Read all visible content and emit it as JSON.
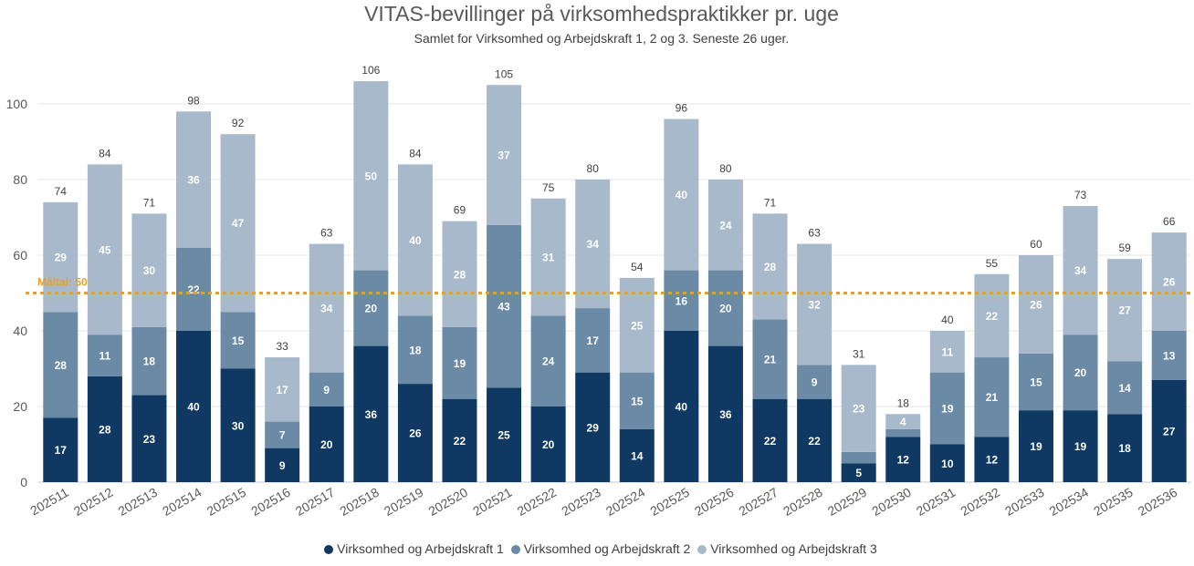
{
  "chart_data": {
    "type": "bar",
    "stacked": true,
    "title": "VITAS-bevillinger på virksomhedspraktikker pr. uge",
    "subtitle": "Samlet for Virksomhed og Arbejdskraft 1, 2 og 3. Seneste 26 uger.",
    "categories": [
      "202511",
      "202512",
      "202513",
      "202514",
      "202515",
      "202516",
      "202517",
      "202518",
      "202519",
      "202520",
      "202521",
      "202522",
      "202523",
      "202524",
      "202525",
      "202526",
      "202527",
      "202528",
      "202529",
      "202530",
      "202531",
      "202532",
      "202533",
      "202534",
      "202535",
      "202536"
    ],
    "series": [
      {
        "name": "Virksomhed og Arbejdskraft 1",
        "color": "#0f3862",
        "values": [
          17,
          28,
          23,
          40,
          30,
          9,
          20,
          36,
          26,
          22,
          25,
          20,
          29,
          14,
          40,
          36,
          22,
          22,
          5,
          12,
          10,
          12,
          19,
          19,
          18,
          27
        ],
        "labels": [
          "17",
          "28",
          "23",
          "40",
          "30",
          "9",
          "20",
          "36",
          "26",
          "22",
          "25",
          "20",
          "29",
          "14",
          "40",
          "36",
          "22",
          "22",
          "5",
          "12",
          "10",
          "12",
          "19",
          "19",
          "18",
          "27"
        ]
      },
      {
        "name": "Virksomhed og Arbejdskraft 2",
        "color": "#6b8aa6",
        "values": [
          28,
          11,
          18,
          22,
          15,
          7,
          9,
          20,
          18,
          19,
          43,
          24,
          17,
          15,
          16,
          20,
          21,
          9,
          3,
          2,
          19,
          21,
          15,
          20,
          14,
          13
        ],
        "labels": [
          "28",
          "11",
          "18",
          "22",
          "15",
          "7",
          "9",
          "20",
          "18",
          "19",
          "43",
          "24",
          "17",
          "15",
          "16",
          "20",
          "21",
          "9",
          "",
          "",
          "19",
          "21",
          "15",
          "20",
          "14",
          "13"
        ]
      },
      {
        "name": "Virksomhed og Arbejdskraft 3",
        "color": "#a7b9ca",
        "values": [
          29,
          45,
          30,
          36,
          47,
          17,
          34,
          50,
          40,
          28,
          37,
          31,
          34,
          25,
          40,
          24,
          28,
          32,
          23,
          4,
          11,
          22,
          26,
          34,
          27,
          26
        ],
        "labels": [
          "29",
          "45",
          "30",
          "36",
          "47",
          "17",
          "34",
          "50",
          "40",
          "28",
          "37",
          "31",
          "34",
          "25",
          "40",
          "24",
          "28",
          "32",
          "23",
          "4",
          "11",
          "22",
          "26",
          "34",
          "27",
          "26"
        ]
      }
    ],
    "totals": [
      "74",
      "84",
      "71",
      "98",
      "92",
      "33",
      "63",
      "106",
      "84",
      "69",
      "105",
      "75",
      "80",
      "54",
      "96",
      "80",
      "71",
      "63",
      "31",
      "18",
      "40",
      "55",
      "60",
      "73",
      "59",
      "66"
    ],
    "yticks": [
      "0",
      "20",
      "40",
      "60",
      "80",
      "100"
    ],
    "ylim": [
      0,
      112
    ],
    "target": {
      "value": 50,
      "label": "Måltal: 50",
      "color": "#e5a02c"
    },
    "grid": true,
    "legend_position": "bottom",
    "label_color": "#ffffff",
    "total_label_color": "#404040",
    "axis_label_color": "#595959"
  }
}
